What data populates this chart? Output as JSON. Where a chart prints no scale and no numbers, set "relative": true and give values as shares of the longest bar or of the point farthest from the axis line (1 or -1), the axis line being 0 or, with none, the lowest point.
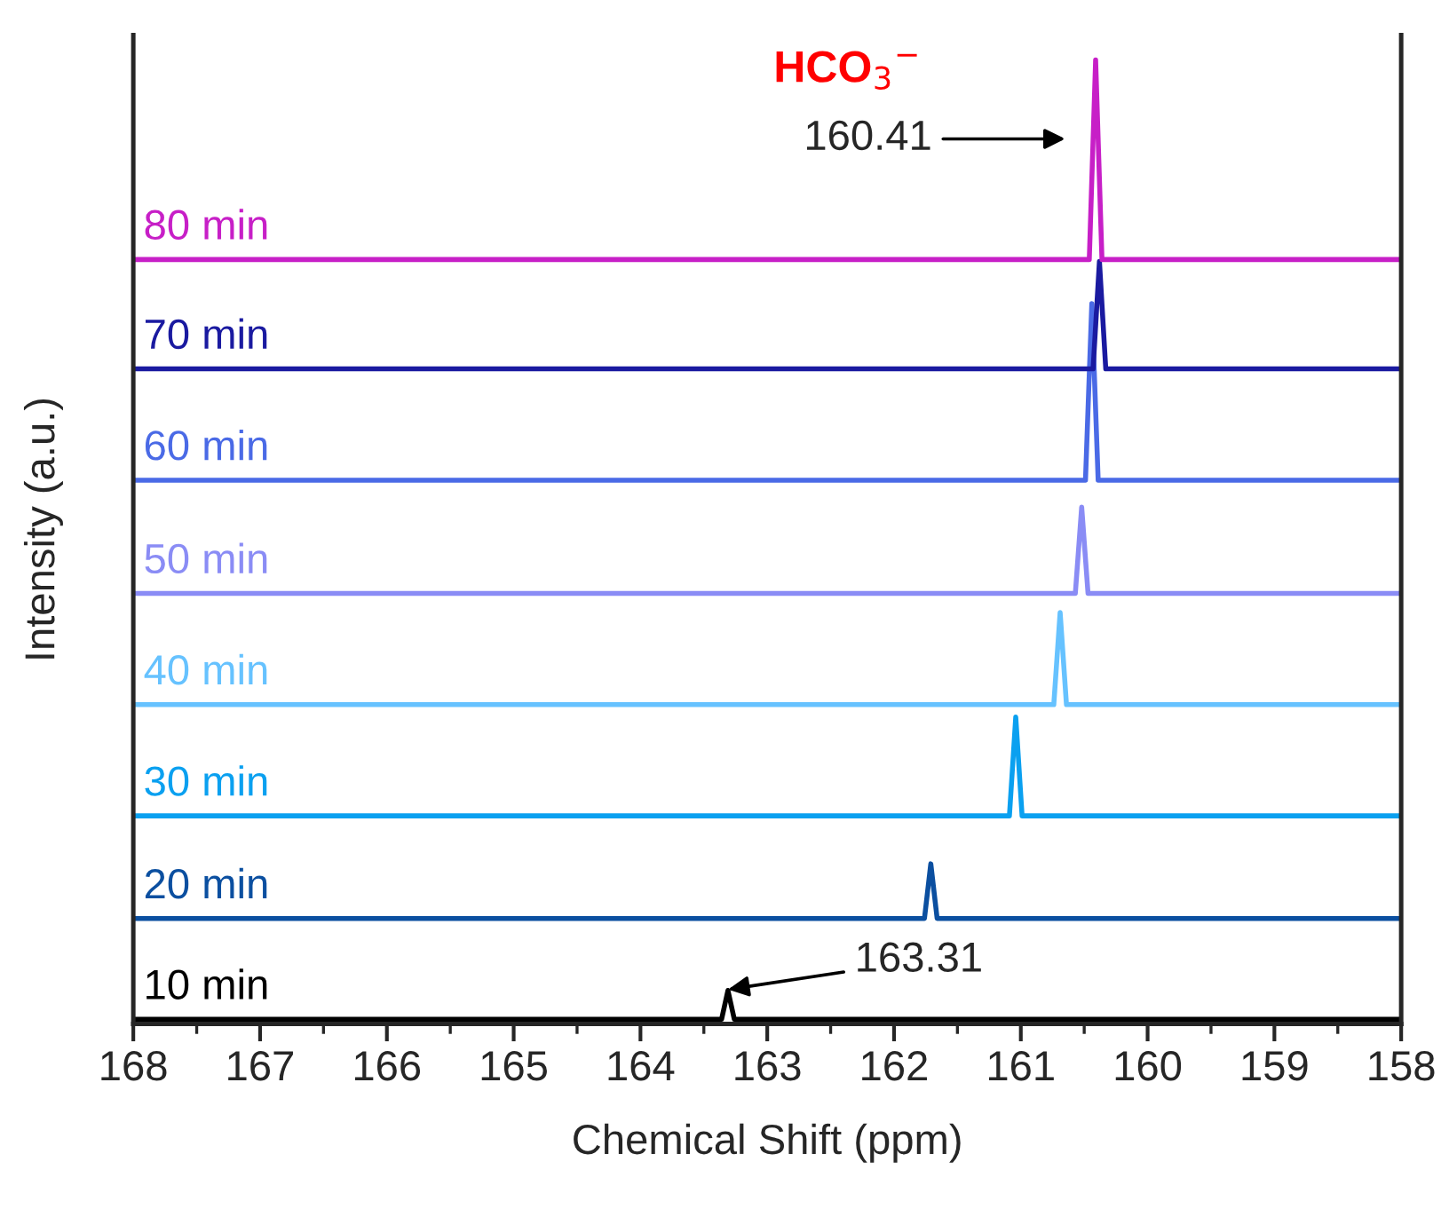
{
  "chart_data": {
    "type": "line",
    "relative": true,
    "xlabel": "Chemical Shift (ppm)",
    "ylabel": "Intensity (a.u.)",
    "xlim": [
      168,
      158
    ],
    "xticks": [
      168,
      167,
      166,
      165,
      164,
      163,
      162,
      161,
      160,
      159,
      158
    ],
    "legend": false,
    "grid": false,
    "marker": "none",
    "line_style": "solid",
    "series": [
      {
        "name": "10 min",
        "color": "#000000",
        "x": [
          168,
          163.36,
          163.31,
          163.26,
          158
        ],
        "values": [
          0.0,
          0.0,
          0.03,
          0.0,
          0.0
        ]
      },
      {
        "name": "20 min",
        "color": "#0b4fa0",
        "x": [
          168,
          161.76,
          161.71,
          161.66,
          158
        ],
        "values": [
          0.105,
          0.105,
          0.162,
          0.105,
          0.105
        ]
      },
      {
        "name": "30 min",
        "color": "#0aa0f0",
        "x": [
          168,
          161.09,
          161.04,
          160.99,
          158
        ],
        "values": [
          0.212,
          0.212,
          0.315,
          0.212,
          0.212
        ]
      },
      {
        "name": "40 min",
        "color": "#66c2ff",
        "x": [
          168,
          160.74,
          160.69,
          160.64,
          158
        ],
        "values": [
          0.328,
          0.328,
          0.424,
          0.328,
          0.328
        ]
      },
      {
        "name": "50 min",
        "color": "#8a8cf5",
        "x": [
          168,
          160.57,
          160.52,
          160.47,
          158
        ],
        "values": [
          0.444,
          0.444,
          0.534,
          0.444,
          0.444
        ]
      },
      {
        "name": "60 min",
        "color": "#4a6ae6",
        "x": [
          168,
          160.49,
          160.44,
          160.39,
          158
        ],
        "values": [
          0.562,
          0.562,
          0.746,
          0.562,
          0.562
        ]
      },
      {
        "name": "70 min",
        "color": "#1a1aa0",
        "x": [
          168,
          160.43,
          160.38,
          160.33,
          158
        ],
        "values": [
          0.678,
          0.678,
          0.79,
          0.678,
          0.678
        ]
      },
      {
        "name": "80 min",
        "color": "#c71fc7",
        "x": [
          168,
          160.46,
          160.41,
          160.36,
          158
        ],
        "values": [
          0.792,
          0.792,
          1.0,
          0.792,
          0.792
        ]
      }
    ],
    "annotations": [
      "HCO$_{3}$$^{−}$",
      "160.41",
      {
        "text": "163.31",
        "x": 163.31,
        "y": 0.031
      }
    ]
  }
}
